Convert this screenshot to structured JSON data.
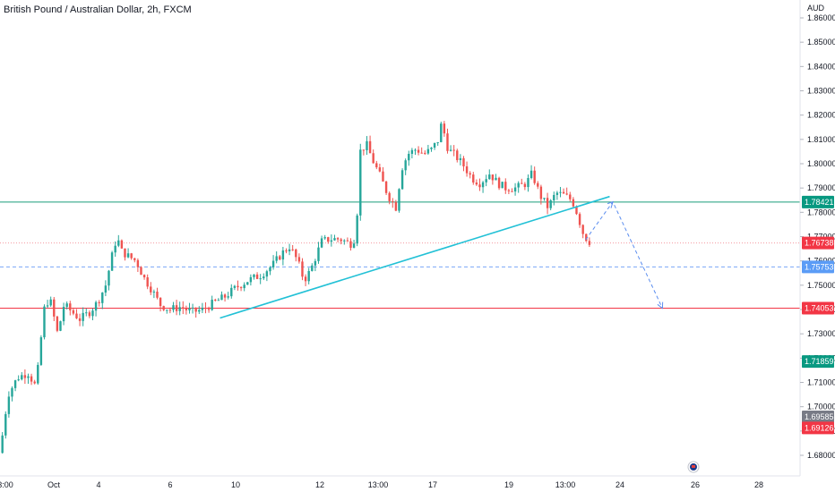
{
  "header": {
    "title": "British Pound / Australian Dollar, 2h, FXCM"
  },
  "axis": {
    "currency": "AUD",
    "price_ticks": [
      "1.86000",
      "1.85000",
      "1.84000",
      "1.83000",
      "1.82000",
      "1.81000",
      "1.80000",
      "1.79000",
      "1.78000",
      "1.77000",
      "1.76000",
      "1.75000",
      "1.74000",
      "1.73000",
      "1.72000",
      "1.71000",
      "1.70000",
      "1.69000",
      "1.68000"
    ],
    "time_ticks": [
      "3:00",
      "Oct",
      "4",
      "6",
      "10",
      "12",
      "13:00",
      "17",
      "19",
      "13:00",
      "24",
      "26",
      "28"
    ]
  },
  "colors": {
    "up": "#26a69a",
    "down": "#ef5350",
    "trendline": "#22c1d6",
    "green_line": "#1a9e7a",
    "red_line": "#f23645",
    "blue_dash": "#2962ff",
    "badge_green": "#089981",
    "badge_red": "#f23645",
    "badge_blue": "#5b9cf6",
    "badge_gray": "#787b86"
  },
  "chart_data": {
    "type": "candlestick",
    "symbol": "British Pound / Australian Dollar",
    "interval": "2h",
    "source": "FXCM",
    "ylim": [
      1.675,
      1.862
    ],
    "price_levels": [
      {
        "price": 1.78421,
        "label": "1.78421",
        "style": "solid",
        "color": "green"
      },
      {
        "price": 1.76738,
        "label": "1.76738",
        "style": "dotted",
        "color": "red"
      },
      {
        "price": 1.75753,
        "label": "1.75753",
        "style": "dashed",
        "color": "blue"
      },
      {
        "price": 1.74053,
        "label": "1.74053",
        "style": "solid",
        "color": "red"
      }
    ],
    "price_badges": [
      {
        "label": "1.71859",
        "price": 1.71859,
        "color": "green"
      },
      {
        "label": "1.69585",
        "price": 1.69585,
        "color": "gray"
      },
      {
        "label": "1.69126",
        "price": 1.69126,
        "color": "red"
      }
    ],
    "trendline": {
      "start": {
        "bar": 0.275,
        "price": 1.7365
      },
      "end": {
        "bar": 0.762,
        "price": 1.7865
      }
    },
    "projection": [
      {
        "bar": 0.732,
        "price": 1.7687
      },
      {
        "bar": 0.766,
        "price": 1.7843
      },
      {
        "bar": 0.828,
        "price": 1.7405
      }
    ],
    "close_path": [
      [
        0.0,
        1.681
      ],
      [
        0.01,
        1.705
      ],
      [
        0.022,
        1.712
      ],
      [
        0.035,
        1.714
      ],
      [
        0.045,
        1.708
      ],
      [
        0.055,
        1.74
      ],
      [
        0.062,
        1.745
      ],
      [
        0.072,
        1.73
      ],
      [
        0.08,
        1.742
      ],
      [
        0.09,
        1.739
      ],
      [
        0.1,
        1.736
      ],
      [
        0.112,
        1.739
      ],
      [
        0.122,
        1.743
      ],
      [
        0.132,
        1.75
      ],
      [
        0.14,
        1.762
      ],
      [
        0.146,
        1.77
      ],
      [
        0.152,
        1.764
      ],
      [
        0.16,
        1.762
      ],
      [
        0.17,
        1.76
      ],
      [
        0.18,
        1.753
      ],
      [
        0.19,
        1.748
      ],
      [
        0.2,
        1.742
      ],
      [
        0.212,
        1.74
      ],
      [
        0.225,
        1.741
      ],
      [
        0.24,
        1.739
      ],
      [
        0.255,
        1.74
      ],
      [
        0.268,
        1.743
      ],
      [
        0.28,
        1.745
      ],
      [
        0.295,
        1.749
      ],
      [
        0.31,
        1.752
      ],
      [
        0.325,
        1.754
      ],
      [
        0.34,
        1.758
      ],
      [
        0.352,
        1.763
      ],
      [
        0.362,
        1.766
      ],
      [
        0.372,
        1.76
      ],
      [
        0.38,
        1.752
      ],
      [
        0.388,
        1.756
      ],
      [
        0.395,
        1.762
      ],
      [
        0.402,
        1.768
      ],
      [
        0.412,
        1.769
      ],
      [
        0.425,
        1.769
      ],
      [
        0.438,
        1.767
      ],
      [
        0.445,
        1.77
      ],
      [
        0.45,
        1.805
      ],
      [
        0.458,
        1.808
      ],
      [
        0.465,
        1.802
      ],
      [
        0.475,
        1.795
      ],
      [
        0.485,
        1.787
      ],
      [
        0.495,
        1.782
      ],
      [
        0.502,
        1.798
      ],
      [
        0.51,
        1.804
      ],
      [
        0.52,
        1.806
      ],
      [
        0.53,
        1.804
      ],
      [
        0.54,
        1.806
      ],
      [
        0.548,
        1.81
      ],
      [
        0.552,
        1.817
      ],
      [
        0.56,
        1.806
      ],
      [
        0.57,
        1.803
      ],
      [
        0.58,
        1.799
      ],
      [
        0.59,
        1.794
      ],
      [
        0.6,
        1.792
      ],
      [
        0.612,
        1.796
      ],
      [
        0.622,
        1.792
      ],
      [
        0.632,
        1.79
      ],
      [
        0.645,
        1.79
      ],
      [
        0.658,
        1.792
      ],
      [
        0.665,
        1.796
      ],
      [
        0.675,
        1.787
      ],
      [
        0.685,
        1.782
      ],
      [
        0.695,
        1.788
      ],
      [
        0.705,
        1.787
      ],
      [
        0.715,
        1.785
      ],
      [
        0.722,
        1.779
      ],
      [
        0.728,
        1.772
      ],
      [
        0.735,
        1.768
      ]
    ]
  }
}
